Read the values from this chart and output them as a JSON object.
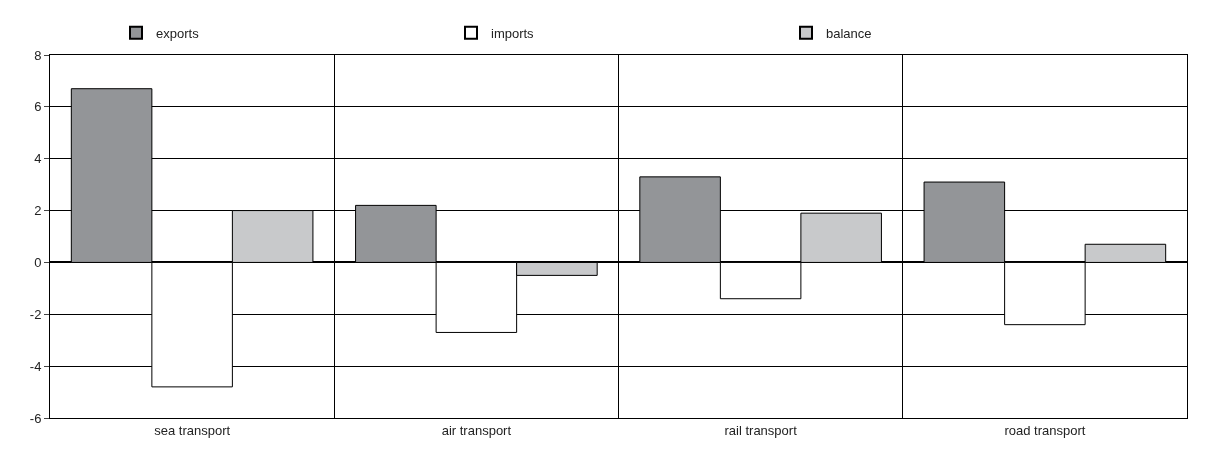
{
  "chart_data": {
    "type": "bar",
    "categories": [
      "sea transport",
      "air transport",
      "rail transport",
      "road transport"
    ],
    "series": [
      {
        "name": "exports",
        "color": "#939598",
        "values": [
          6.7,
          2.2,
          3.3,
          3.1
        ]
      },
      {
        "name": "imports",
        "color": "#ffffff",
        "values": [
          -4.8,
          -2.7,
          -1.4,
          -2.4
        ]
      },
      {
        "name": "balance",
        "color": "#c8c9cb",
        "values": [
          2.0,
          -0.5,
          1.9,
          0.7
        ]
      }
    ],
    "ylim": [
      -6,
      8
    ],
    "yticks": [
      -6,
      -4,
      -2,
      0,
      2,
      4,
      6,
      8
    ],
    "grid": true,
    "legend": "top"
  }
}
